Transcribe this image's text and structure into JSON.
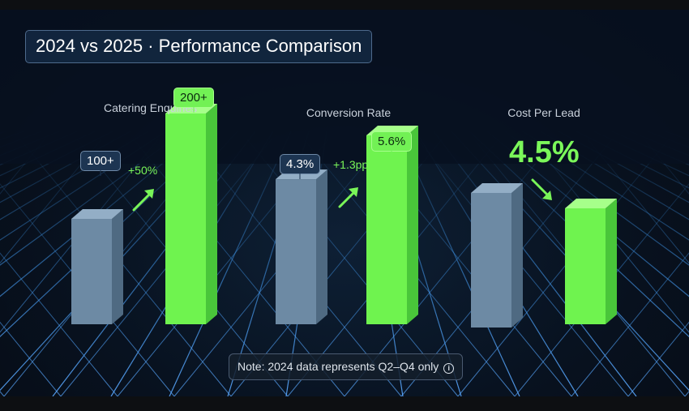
{
  "chart_data": {
    "type": "bar",
    "title": "2024 vs 2025 · Performance Comparison",
    "legend": "none",
    "grid": true,
    "groups": [
      {
        "label": "Catering Enquiries",
        "series": [
          {
            "value": 100,
            "label": "100+"
          },
          {
            "value": 200,
            "label": "200+"
          }
        ],
        "change": "+50%",
        "direction": "up"
      },
      {
        "label": "Conversion Rate",
        "series": [
          {
            "value": 4.3,
            "label": "4.3%"
          },
          {
            "value": 5.6,
            "label": "5.6%"
          }
        ],
        "change": "+1.3pp",
        "direction": "up"
      },
      {
        "label": "Cost Per Lead",
        "highlight": "4.5%",
        "direction": "down"
      }
    ],
    "colors": {
      "year_2024": "#6d8aa4",
      "year_2025": "#6ff34f"
    }
  },
  "note": {
    "text": "Note: 2024 data represents Q2–Q4 only",
    "icon": "info-icon"
  }
}
